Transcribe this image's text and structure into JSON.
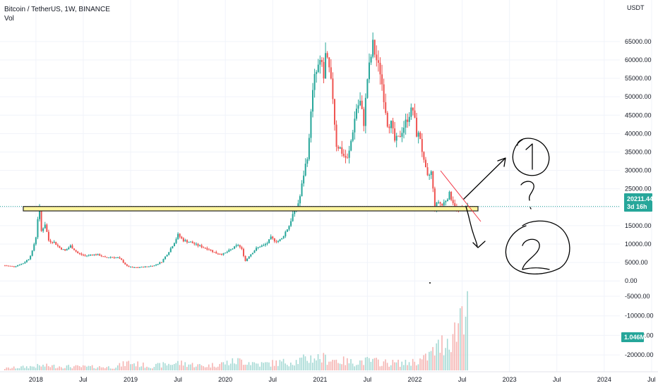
{
  "legend": {
    "title": "Bitcoin / TetherUS, 1W, BINANCE",
    "vol_label": "Vol"
  },
  "colors": {
    "up": "#26a69a",
    "down": "#ef5350",
    "support_fill": "#fff59d",
    "support_stroke": "#222222",
    "trendline": "#f23645",
    "ink": "#000000",
    "badge": "#26a69a",
    "price_line": "#26a69a"
  },
  "chart_data": {
    "type": "candlestick",
    "symbol": "Bitcoin / TetherUS",
    "interval": "1W",
    "exchange": "BINANCE",
    "price_axis": {
      "unit": "USDT",
      "ticks": [
        "65000.00",
        "60000.00",
        "55000.00",
        "50000.00",
        "45000.00",
        "40000.00",
        "35000.00",
        "30000.00",
        "25000.00",
        "20000.00",
        "15000.00",
        "10000.00",
        "5000.00",
        "0.00"
      ]
    },
    "volume_axis": {
      "ticks": [
        "-5000.00",
        "-10000.00",
        "-15000.00",
        "-20000.00"
      ]
    },
    "x_axis": {
      "ticks": [
        "2018",
        "Jul",
        "2019",
        "Jul",
        "2020",
        "Jul",
        "2021",
        "Jul",
        "2022",
        "Jul",
        "2023",
        "Jul",
        "2024",
        "Jul"
      ]
    },
    "current_price": 20211.44,
    "current_price_label": "20211.44",
    "countdown_label": "3d 16h",
    "volume_label": "1.046M",
    "support_zone": [
      19000,
      20200
    ],
    "price_path": [
      [
        0,
        4200
      ],
      [
        5,
        3900
      ],
      [
        10,
        4800
      ],
      [
        13,
        6000
      ],
      [
        15,
        8000
      ],
      [
        17,
        12000
      ],
      [
        18,
        17000
      ],
      [
        19,
        19500
      ],
      [
        20,
        13500
      ],
      [
        22,
        15500
      ],
      [
        24,
        11000
      ],
      [
        27,
        10500
      ],
      [
        30,
        9000
      ],
      [
        33,
        8200
      ],
      [
        36,
        9500
      ],
      [
        40,
        7500
      ],
      [
        44,
        6800
      ],
      [
        48,
        7200
      ],
      [
        52,
        7000
      ],
      [
        55,
        6300
      ],
      [
        58,
        6500
      ],
      [
        62,
        6300
      ],
      [
        64,
        5600
      ],
      [
        67,
        4000
      ],
      [
        70,
        3600
      ],
      [
        74,
        3700
      ],
      [
        78,
        3900
      ],
      [
        82,
        4200
      ],
      [
        86,
        5200
      ],
      [
        90,
        8000
      ],
      [
        93,
        10500
      ],
      [
        95,
        12500
      ],
      [
        98,
        11000
      ],
      [
        102,
        10500
      ],
      [
        105,
        9800
      ],
      [
        108,
        9300
      ],
      [
        112,
        8600
      ],
      [
        116,
        7500
      ],
      [
        120,
        7300
      ],
      [
        124,
        8500
      ],
      [
        128,
        9800
      ],
      [
        130,
        8500
      ],
      [
        132,
        5400
      ],
      [
        134,
        6800
      ],
      [
        136,
        7800
      ],
      [
        138,
        8800
      ],
      [
        140,
        9400
      ],
      [
        142,
        9600
      ],
      [
        144,
        10300
      ],
      [
        146,
        11700
      ],
      [
        148,
        11000
      ],
      [
        150,
        10800
      ],
      [
        152,
        11500
      ],
      [
        154,
        13300
      ],
      [
        156,
        15000
      ],
      [
        158,
        18000
      ],
      [
        160,
        19300
      ],
      [
        162,
        23000
      ],
      [
        164,
        29000
      ],
      [
        166,
        34000
      ],
      [
        167,
        38000
      ],
      [
        168,
        47000
      ],
      [
        170,
        55000
      ],
      [
        172,
        58000
      ],
      [
        174,
        59000
      ],
      [
        175,
        55000
      ],
      [
        176,
        61000
      ],
      [
        178,
        57000
      ],
      [
        180,
        50000
      ],
      [
        181,
        43000
      ],
      [
        182,
        37000
      ],
      [
        184,
        36000
      ],
      [
        186,
        34000
      ],
      [
        188,
        33000
      ],
      [
        189,
        35000
      ],
      [
        191,
        41000
      ],
      [
        193,
        47000
      ],
      [
        195,
        48500
      ],
      [
        197,
        43000
      ],
      [
        199,
        55000
      ],
      [
        201,
        61000
      ],
      [
        202,
        64000
      ],
      [
        203,
        62000
      ],
      [
        205,
        58000
      ],
      [
        206,
        57000
      ],
      [
        208,
        50000
      ],
      [
        210,
        43000
      ],
      [
        212,
        42500
      ],
      [
        214,
        38000
      ],
      [
        216,
        38500
      ],
      [
        218,
        41000
      ],
      [
        220,
        43000
      ],
      [
        222,
        45500
      ],
      [
        224,
        46500
      ],
      [
        226,
        40000
      ],
      [
        228,
        39000
      ],
      [
        230,
        32000
      ],
      [
        232,
        28000
      ],
      [
        234,
        29500
      ],
      [
        236,
        20000
      ],
      [
        238,
        21500
      ],
      [
        240,
        20500
      ],
      [
        242,
        22000
      ],
      [
        244,
        23500
      ],
      [
        246,
        21500
      ],
      [
        248,
        19500
      ],
      [
        250,
        19300
      ],
      [
        252,
        19600
      ],
      [
        254,
        20200
      ]
    ],
    "volume_path": [
      [
        0,
        600
      ],
      [
        20,
        1400
      ],
      [
        40,
        1100
      ],
      [
        60,
        1000
      ],
      [
        68,
        2400
      ],
      [
        80,
        1200
      ],
      [
        95,
        2300
      ],
      [
        110,
        1300
      ],
      [
        130,
        3000
      ],
      [
        140,
        1900
      ],
      [
        160,
        2800
      ],
      [
        170,
        4000
      ],
      [
        180,
        3300
      ],
      [
        190,
        2500
      ],
      [
        200,
        2900
      ],
      [
        210,
        2300
      ],
      [
        220,
        2200
      ],
      [
        230,
        3300
      ],
      [
        236,
        6000
      ],
      [
        240,
        8000
      ],
      [
        244,
        10000
      ],
      [
        248,
        12000
      ],
      [
        250,
        18000
      ],
      [
        252,
        21000
      ],
      [
        253,
        24000
      ]
    ]
  },
  "annotations": {
    "circle_one": "1",
    "question": "?",
    "circle_two": "2"
  }
}
